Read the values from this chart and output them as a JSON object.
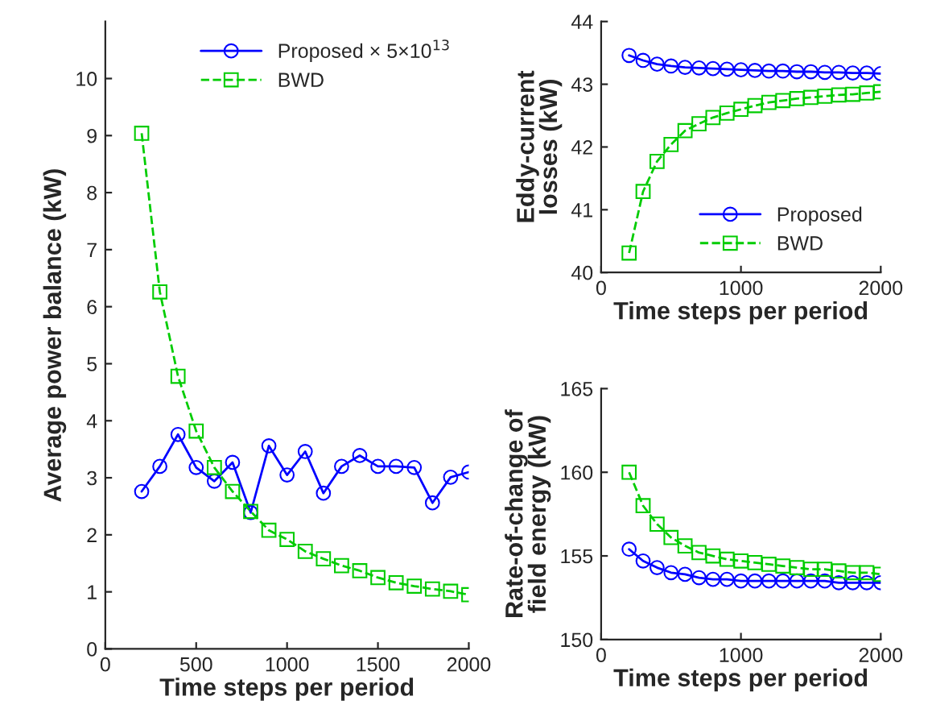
{
  "chart_data": [
    {
      "type": "line",
      "ylabel": "Average power balance (kW)",
      "xlabel": "Time steps per period",
      "x": [
        200,
        300,
        400,
        500,
        600,
        700,
        800,
        900,
        1000,
        1100,
        1200,
        1300,
        1400,
        1500,
        1600,
        1700,
        1800,
        1900,
        2000
      ],
      "xlim": [
        0,
        2000
      ],
      "xticks": [
        0,
        500,
        1000,
        1500,
        2000
      ],
      "ylim": [
        0,
        11
      ],
      "yticks": [
        0,
        1,
        2,
        3,
        4,
        5,
        6,
        7,
        8,
        9,
        10
      ],
      "grid": false,
      "legend": "top right",
      "series": [
        {
          "name": "Proposed × 5×10$^{13}$",
          "color": "#0000ff",
          "marker": "circle",
          "line_style": "solid",
          "values": [
            2.76,
            3.2,
            3.76,
            3.18,
            2.94,
            3.27,
            2.39,
            3.56,
            3.05,
            3.46,
            2.73,
            3.2,
            3.39,
            3.2,
            3.2,
            3.18,
            2.56,
            3.01,
            3.1
          ]
        },
        {
          "name": "BWD",
          "color": "#00cc00",
          "marker": "square",
          "line_style": "dashed",
          "values": [
            9.04,
            6.26,
            4.78,
            3.82,
            3.18,
            2.76,
            2.41,
            2.08,
            1.92,
            1.71,
            1.58,
            1.46,
            1.37,
            1.25,
            1.16,
            1.1,
            1.05,
            1.01,
            0.95
          ]
        }
      ]
    },
    {
      "type": "line",
      "ylabel": "Eddy-current losses (kW)",
      "xlabel": "Time steps per period",
      "x": [
        200,
        300,
        400,
        500,
        600,
        700,
        800,
        900,
        1000,
        1100,
        1200,
        1300,
        1400,
        1500,
        1600,
        1700,
        1800,
        1900,
        2000
      ],
      "xlim": [
        0,
        2000
      ],
      "xticks": [
        0,
        1000,
        2000
      ],
      "ylim": [
        40,
        44
      ],
      "yticks": [
        40,
        41,
        42,
        43,
        44
      ],
      "grid": false,
      "legend": "bottom right",
      "series": [
        {
          "name": "Proposed",
          "color": "#0000ff",
          "marker": "circle",
          "line_style": "solid",
          "values": [
            43.46,
            43.38,
            43.32,
            43.29,
            43.27,
            43.26,
            43.25,
            43.24,
            43.23,
            43.22,
            43.21,
            43.21,
            43.2,
            43.2,
            43.19,
            43.19,
            43.18,
            43.18,
            43.17
          ]
        },
        {
          "name": "BWD",
          "color": "#00cc00",
          "marker": "square",
          "line_style": "dashed",
          "values": [
            40.31,
            41.29,
            41.77,
            42.04,
            42.26,
            42.37,
            42.47,
            42.54,
            42.6,
            42.66,
            42.71,
            42.74,
            42.77,
            42.79,
            42.81,
            42.83,
            42.84,
            42.86,
            42.88
          ]
        }
      ]
    },
    {
      "type": "line",
      "ylabel": "Rate-of-change of field energy (kW)",
      "xlabel": "Time steps per period",
      "x": [
        200,
        300,
        400,
        500,
        600,
        700,
        800,
        900,
        1000,
        1100,
        1200,
        1300,
        1400,
        1500,
        1600,
        1700,
        1800,
        1900,
        2000
      ],
      "xlim": [
        0,
        2000
      ],
      "xticks": [
        0,
        1000,
        2000
      ],
      "ylim": [
        150,
        165
      ],
      "yticks": [
        150,
        155,
        160,
        165
      ],
      "grid": false,
      "series": [
        {
          "color": "#0000ff",
          "marker": "circle",
          "line_style": "solid",
          "values": [
            155.4,
            154.7,
            154.3,
            154.0,
            153.9,
            153.7,
            153.6,
            153.6,
            153.5,
            153.5,
            153.5,
            153.5,
            153.5,
            153.5,
            153.5,
            153.4,
            153.4,
            153.4,
            153.4
          ]
        },
        {
          "color": "#00cc00",
          "marker": "square",
          "line_style": "dashed",
          "values": [
            160.0,
            158.0,
            156.9,
            156.1,
            155.6,
            155.2,
            155.0,
            154.8,
            154.7,
            154.6,
            154.5,
            154.4,
            154.3,
            154.2,
            154.2,
            154.1,
            154.0,
            154.0,
            153.9
          ]
        }
      ]
    }
  ]
}
